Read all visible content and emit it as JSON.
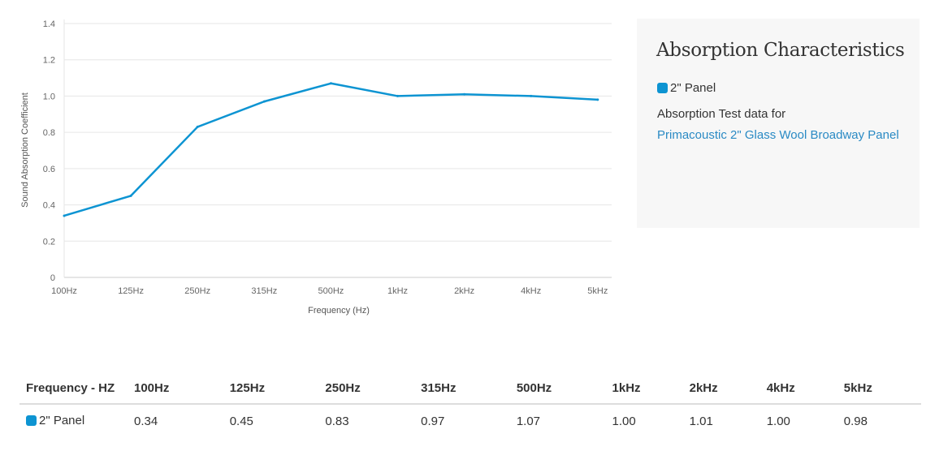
{
  "chart_data": {
    "type": "line",
    "title": "",
    "xlabel": "Frequency (Hz)",
    "ylabel": "Sound Absorption Coefficient",
    "categories": [
      "100Hz",
      "125Hz",
      "250Hz",
      "315Hz",
      "500Hz",
      "1kHz",
      "2kHz",
      "4kHz",
      "5kHz"
    ],
    "series": [
      {
        "name": "2\" Panel",
        "color": "#0d94d2",
        "values": [
          0.34,
          0.45,
          0.83,
          0.97,
          1.07,
          1.0,
          1.01,
          1.0,
          0.98
        ]
      }
    ],
    "ylim": [
      0,
      1.4
    ],
    "yticks": [
      "0",
      "0.2",
      "0.4",
      "0.6",
      "0.8",
      "1.0",
      "1.2",
      "1.4"
    ],
    "grid": true
  },
  "panel": {
    "title": "Absorption Characteristics",
    "legend_label": "2\" Panel",
    "description": "Absorption Test data for",
    "link_text": "Primacoustic 2\" Glass Wool Broadway Panel"
  },
  "table": {
    "header": [
      "Frequency - HZ",
      "100Hz",
      "125Hz",
      "250Hz",
      "315Hz",
      "500Hz",
      "1kHz",
      "2kHz",
      "4kHz",
      "5kHz"
    ],
    "rows": [
      {
        "label": "2\" Panel",
        "values": [
          "0.34",
          "0.45",
          "0.83",
          "0.97",
          "1.07",
          "1.00",
          "1.01",
          "1.00",
          "0.98"
        ]
      }
    ]
  }
}
